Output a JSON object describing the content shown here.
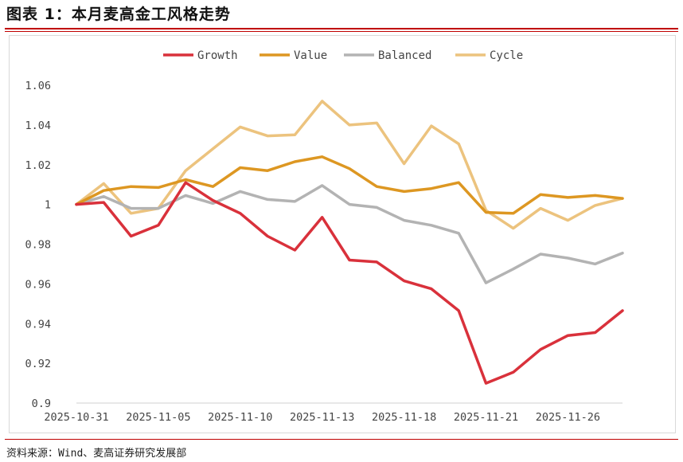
{
  "title": "图表 1：本月麦高金工风格走势",
  "source": "资料来源：Wind、麦高证券研究发展部",
  "chart_data": {
    "type": "line",
    "title": "",
    "xlabel": "",
    "ylabel": "",
    "ylim": [
      0.9,
      1.06
    ],
    "yticks": [
      0.9,
      0.92,
      0.94,
      0.96,
      0.98,
      1.0,
      1.02,
      1.04,
      1.06
    ],
    "ytick_labels": [
      "0.9",
      "0.92",
      "0.94",
      "0.96",
      "0.98",
      "1",
      "1.02",
      "1.04",
      "1.06"
    ],
    "x": [
      "2025-10-31",
      "2025-11-03",
      "2025-11-04",
      "2025-11-05",
      "2025-11-06",
      "2025-11-07",
      "2025-11-10",
      "2025-11-11",
      "2025-11-12",
      "2025-11-13",
      "2025-11-14",
      "2025-11-17",
      "2025-11-18",
      "2025-11-19",
      "2025-11-20",
      "2025-11-21",
      "2025-11-24",
      "2025-11-25",
      "2025-11-26",
      "2025-11-27",
      "2025-11-28"
    ],
    "xtick_labels": [
      "2025-10-31",
      "2025-11-05",
      "2025-11-10",
      "2025-11-13",
      "2025-11-18",
      "2025-11-21",
      "2025-11-26"
    ],
    "xtick_index": [
      0,
      3,
      6,
      9,
      12,
      15,
      18
    ],
    "grid": false,
    "legend_position": "top",
    "series": [
      {
        "name": "Growth",
        "color": "#d9313b",
        "values": [
          1.0,
          1.001,
          0.984,
          0.9895,
          1.011,
          1.002,
          0.9955,
          0.984,
          0.977,
          0.9935,
          0.972,
          0.971,
          0.9615,
          0.9575,
          0.9465,
          0.91,
          0.9155,
          0.927,
          0.934,
          0.9355,
          0.9465
        ]
      },
      {
        "name": "Value",
        "color": "#dd9722",
        "values": [
          1.0,
          1.007,
          1.009,
          1.0085,
          1.0125,
          1.009,
          1.0185,
          1.017,
          1.0215,
          1.024,
          1.018,
          1.009,
          1.0065,
          1.008,
          1.011,
          0.996,
          0.9955,
          1.005,
          1.0035,
          1.0045,
          1.003
        ]
      },
      {
        "name": "Balanced",
        "color": "#b3b3b3",
        "values": [
          1.0,
          1.004,
          0.998,
          0.998,
          1.0045,
          1.0005,
          1.0065,
          1.0025,
          1.0015,
          1.0095,
          1.0,
          0.9985,
          0.992,
          0.9895,
          0.9855,
          0.9605,
          0.9675,
          0.975,
          0.973,
          0.97,
          0.9755
        ]
      },
      {
        "name": "Cycle",
        "color": "#ecc37e",
        "values": [
          1.0,
          1.0105,
          0.9955,
          0.998,
          1.017,
          1.028,
          1.039,
          1.0345,
          1.035,
          1.052,
          1.04,
          1.041,
          1.0205,
          1.0395,
          1.0305,
          0.997,
          0.988,
          0.998,
          0.992,
          0.9995,
          1.003
        ]
      }
    ]
  }
}
